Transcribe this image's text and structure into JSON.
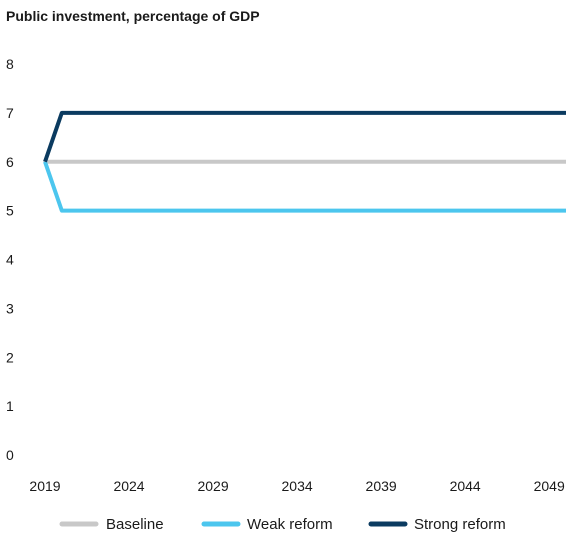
{
  "chart_data": {
    "type": "line",
    "title": "Public investment, percentage of GDP",
    "xlabel": "",
    "ylabel": "",
    "x": [
      2019,
      2020,
      2021,
      2022,
      2023,
      2024,
      2025,
      2026,
      2027,
      2028,
      2029,
      2030,
      2031,
      2032,
      2033,
      2034,
      2035,
      2036,
      2037,
      2038,
      2039,
      2040,
      2041,
      2042,
      2043,
      2044,
      2045,
      2046,
      2047,
      2048,
      2049,
      2050
    ],
    "xlim": [
      2019,
      2050
    ],
    "xticks": [
      2019,
      2024,
      2029,
      2034,
      2039,
      2044,
      2049
    ],
    "ylim": [
      0,
      8
    ],
    "yticks": [
      0,
      1,
      2,
      3,
      4,
      5,
      6,
      7,
      8
    ],
    "grid": false,
    "legend_position": "bottom",
    "series": [
      {
        "name": "Baseline",
        "color": "#c8c8c8",
        "values": [
          6,
          6,
          6,
          6,
          6,
          6,
          6,
          6,
          6,
          6,
          6,
          6,
          6,
          6,
          6,
          6,
          6,
          6,
          6,
          6,
          6,
          6,
          6,
          6,
          6,
          6,
          6,
          6,
          6,
          6,
          6,
          6
        ]
      },
      {
        "name": "Weak reform",
        "color": "#4cc6ee",
        "values": [
          6,
          5,
          5,
          5,
          5,
          5,
          5,
          5,
          5,
          5,
          5,
          5,
          5,
          5,
          5,
          5,
          5,
          5,
          5,
          5,
          5,
          5,
          5,
          5,
          5,
          5,
          5,
          5,
          5,
          5,
          5,
          5
        ]
      },
      {
        "name": "Strong reform",
        "color": "#0b3b60",
        "values": [
          6,
          7,
          7,
          7,
          7,
          7,
          7,
          7,
          7,
          7,
          7,
          7,
          7,
          7,
          7,
          7,
          7,
          7,
          7,
          7,
          7,
          7,
          7,
          7,
          7,
          7,
          7,
          7,
          7,
          7,
          7,
          7
        ]
      }
    ]
  }
}
